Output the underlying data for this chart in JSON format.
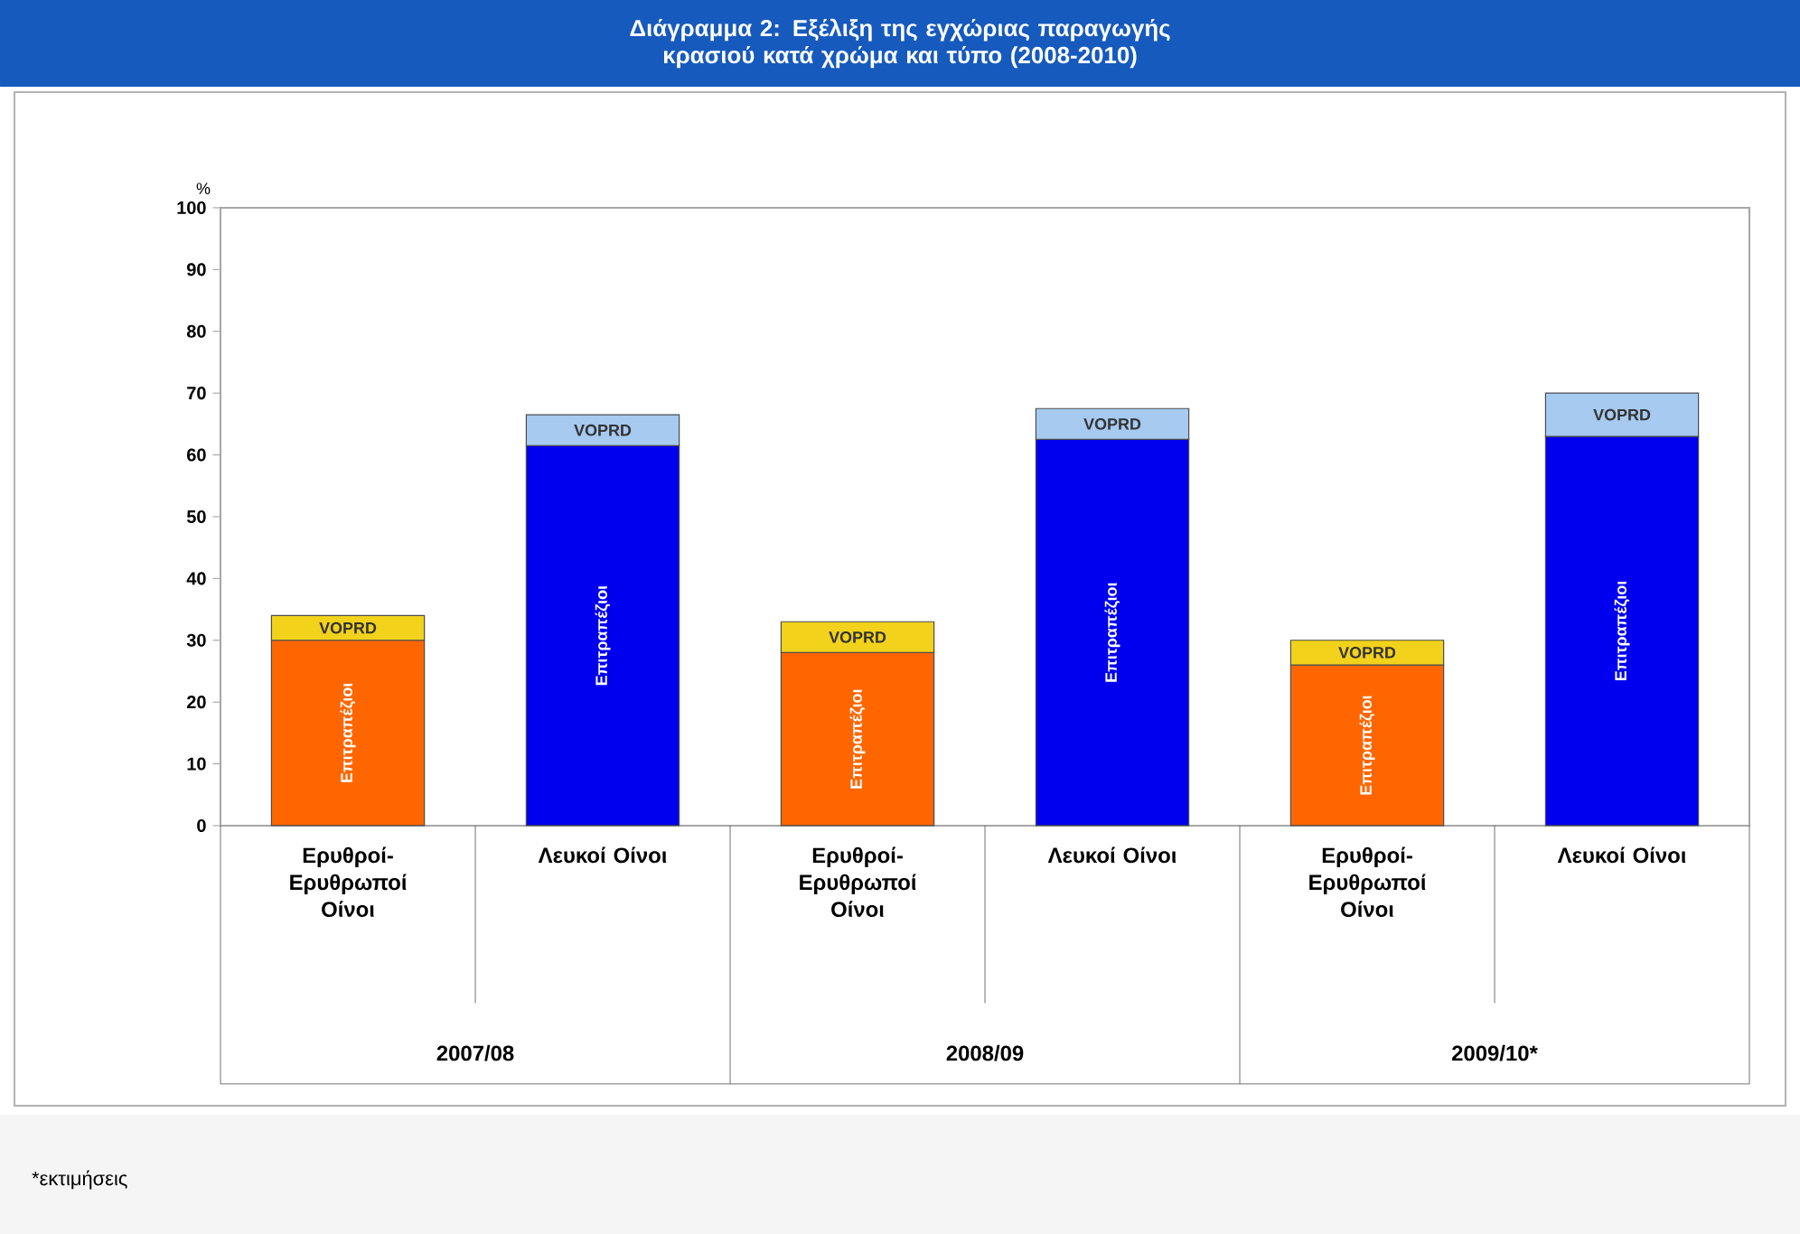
{
  "chart_data": {
    "type": "bar",
    "stacked": true,
    "title": "Διάγραμμα 2: Εξέλιξη της εγχώριας παραγωγής κρασιού κατά χρώμα και τύπο (2008-2010)",
    "ylabel": "%",
    "categories": [
      "Ερυθροί- Ερυθρωποί Οίνοι",
      "Λευκοί Οίνοι",
      "Ερυθροί- Ερυθρωποί Οίνοι",
      "Λευκοί Οίνοι",
      "Ερυθροί- Ερυθρωποί Οίνοι",
      "Λευκοί Οίνοι"
    ],
    "series": [
      {
        "name": "Επιτραπέζιοι",
        "colors": [
          "#ff6600",
          "#0000ee",
          "#ff6600",
          "#0000ee",
          "#ff6600",
          "#0000ee"
        ],
        "values": [
          30,
          61.5,
          28,
          62.5,
          26,
          63
        ]
      },
      {
        "name": "VOPRD",
        "colors": [
          "#f2d21a",
          "#a6caf0",
          "#f2d21a",
          "#a6caf0",
          "#f2d21a",
          "#a6caf0"
        ],
        "values": [
          4,
          5,
          5,
          5,
          4,
          7
        ]
      }
    ],
    "ylim": [
      0,
      100
    ],
    "yticks": [
      0,
      10,
      20,
      30,
      40,
      50,
      60,
      70,
      80,
      90,
      100
    ],
    "annotations": [
      "2007/08",
      "2008/09",
      "2009/10*",
      "*εκτιμήσεις"
    ]
  }
}
